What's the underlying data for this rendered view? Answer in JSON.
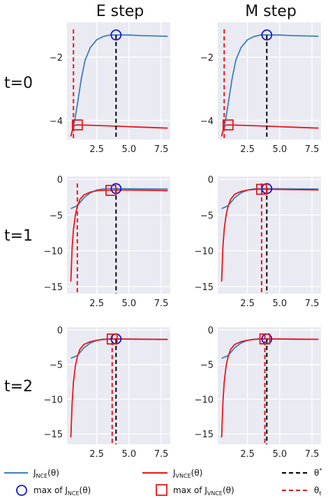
{
  "column_titles": [
    "E step",
    "M step"
  ],
  "row_labels": [
    "t=0",
    "t=1",
    "t=2"
  ],
  "legend": {
    "nce": "J_NCE(θ)",
    "vnce": "J_VNCE(θ)",
    "max_nce": "max of J_NCE(θ)",
    "max_vnce": "max of J_VNCE(θ)",
    "theta_star": "θ*",
    "theta_t": "θ_t"
  },
  "colors": {
    "nce": "#3a7fbf",
    "vnce": "#e8171b",
    "theta_star": "#000000",
    "theta_t": "#e8171b",
    "marker_nce": "#1515cf",
    "marker_vnce": "#e8171b",
    "panel_bg": "#eaeaf2",
    "grid": "#ffffff"
  },
  "chart_data": [
    {
      "type": "line",
      "row": 0,
      "col": 0,
      "title": "E step",
      "row_label": "t=0",
      "xlim": [
        0.2,
        8.2
      ],
      "ylim": [
        -4.6,
        -0.9
      ],
      "xticks": [
        2.5,
        5.0,
        7.5
      ],
      "yticks": [
        -2,
        -4
      ],
      "theta_star": 4.0,
      "theta_t": 0.7,
      "nce": {
        "x": [
          0.5,
          0.8,
          1.0,
          1.3,
          1.6,
          2.0,
          2.5,
          3.0,
          3.5,
          4.0,
          5.0,
          6.0,
          7.0,
          8.0
        ],
        "y": [
          -4.5,
          -4.0,
          -3.5,
          -2.7,
          -2.1,
          -1.7,
          -1.45,
          -1.35,
          -1.3,
          -1.3,
          -1.3,
          -1.32,
          -1.33,
          -1.34
        ]
      },
      "vnce": {
        "x": [
          0.5,
          0.6,
          0.7,
          0.8,
          1.0,
          2.0,
          4.0,
          6.0,
          8.0
        ],
        "y": [
          -4.5,
          -4.35,
          -4.2,
          -4.15,
          -4.14,
          -4.15,
          -4.18,
          -4.21,
          -4.24
        ]
      },
      "max_nce": [
        4.0,
        -1.3
      ],
      "max_vnce": [
        1.0,
        -4.14
      ]
    },
    {
      "type": "line",
      "row": 0,
      "col": 1,
      "title": "M step",
      "row_label": "t=0",
      "xlim": [
        0.2,
        8.2
      ],
      "ylim": [
        -4.6,
        -0.9
      ],
      "xticks": [
        2.5,
        5.0,
        7.5
      ],
      "yticks": [
        -2,
        -4
      ],
      "theta_star": 4.0,
      "theta_t": 0.7,
      "nce": {
        "x": [
          0.5,
          0.8,
          1.0,
          1.3,
          1.6,
          2.0,
          2.5,
          3.0,
          3.5,
          4.0,
          5.0,
          6.0,
          7.0,
          8.0
        ],
        "y": [
          -4.5,
          -4.0,
          -3.5,
          -2.7,
          -2.1,
          -1.7,
          -1.45,
          -1.35,
          -1.3,
          -1.3,
          -1.3,
          -1.32,
          -1.33,
          -1.34
        ]
      },
      "vnce": {
        "x": [
          0.5,
          0.6,
          0.7,
          0.8,
          1.0,
          2.0,
          4.0,
          6.0,
          8.0
        ],
        "y": [
          -4.5,
          -4.35,
          -4.2,
          -4.15,
          -4.14,
          -4.15,
          -4.18,
          -4.21,
          -4.24
        ]
      },
      "max_nce": [
        4.0,
        -1.3
      ],
      "max_vnce": [
        1.0,
        -4.14
      ]
    },
    {
      "type": "line",
      "row": 1,
      "col": 0,
      "title": "",
      "row_label": "t=1",
      "xlim": [
        0.2,
        8.2
      ],
      "ylim": [
        -16.0,
        0.4
      ],
      "xticks": [
        2.5,
        5.0,
        7.5
      ],
      "yticks": [
        0,
        -5,
        -10,
        -15
      ],
      "theta_star": 4.0,
      "theta_t": 1.0,
      "nce": {
        "x": [
          0.5,
          1.0,
          1.5,
          2.0,
          2.5,
          3.0,
          3.5,
          4.0,
          5.0,
          6.0,
          8.0
        ],
        "y": [
          -4.1,
          -3.7,
          -2.6,
          -1.9,
          -1.5,
          -1.35,
          -1.3,
          -1.3,
          -1.32,
          -1.34,
          -1.36
        ]
      },
      "vnce": {
        "x": [
          0.5,
          0.6,
          0.7,
          0.85,
          1.0,
          1.2,
          1.5,
          2.0,
          2.5,
          3.0,
          4.0,
          5.0,
          6.0,
          7.0,
          8.0
        ],
        "y": [
          -14.3,
          -9.5,
          -7.0,
          -5.0,
          -3.8,
          -2.8,
          -2.2,
          -1.8,
          -1.6,
          -1.55,
          -1.5,
          -1.5,
          -1.52,
          -1.55,
          -1.58
        ]
      },
      "max_nce": [
        4.0,
        -1.3
      ],
      "max_vnce": [
        3.6,
        -1.55
      ]
    },
    {
      "type": "line",
      "row": 1,
      "col": 1,
      "title": "",
      "row_label": "t=1",
      "xlim": [
        0.2,
        8.2
      ],
      "ylim": [
        -16.0,
        0.4
      ],
      "xticks": [
        2.5,
        5.0,
        7.5
      ],
      "yticks": [
        0,
        -5,
        -10,
        -15
      ],
      "theta_star": 4.0,
      "theta_t": 3.6,
      "nce": {
        "x": [
          0.5,
          1.0,
          1.5,
          2.0,
          2.5,
          3.0,
          3.5,
          4.0,
          5.0,
          6.0,
          8.0
        ],
        "y": [
          -4.1,
          -3.7,
          -2.6,
          -1.9,
          -1.5,
          -1.35,
          -1.3,
          -1.3,
          -1.32,
          -1.34,
          -1.36
        ]
      },
      "vnce": {
        "x": [
          0.5,
          0.6,
          0.7,
          0.85,
          1.0,
          1.2,
          1.5,
          2.0,
          2.5,
          3.0,
          3.5,
          4.0,
          5.0,
          6.0,
          8.0
        ],
        "y": [
          -14.3,
          -9.5,
          -7.0,
          -5.0,
          -3.8,
          -2.8,
          -2.1,
          -1.7,
          -1.5,
          -1.42,
          -1.4,
          -1.4,
          -1.42,
          -1.44,
          -1.48
        ]
      },
      "max_nce": [
        4.0,
        -1.3
      ],
      "max_vnce": [
        3.6,
        -1.4
      ]
    },
    {
      "type": "line",
      "row": 2,
      "col": 0,
      "title": "",
      "row_label": "t=2",
      "xlim": [
        0.2,
        8.2
      ],
      "ylim": [
        -16.5,
        0.4
      ],
      "xticks": [
        2.5,
        5.0,
        7.5
      ],
      "yticks": [
        0,
        -5,
        -10,
        -15
      ],
      "theta_star": 4.0,
      "theta_t": 3.7,
      "nce": {
        "x": [
          0.5,
          1.0,
          1.5,
          2.0,
          2.5,
          3.0,
          3.5,
          4.0,
          5.0,
          6.0,
          8.0
        ],
        "y": [
          -4.1,
          -3.7,
          -2.6,
          -1.9,
          -1.5,
          -1.35,
          -1.3,
          -1.3,
          -1.32,
          -1.34,
          -1.36
        ]
      },
      "vnce": {
        "x": [
          0.5,
          0.6,
          0.7,
          0.85,
          1.0,
          1.2,
          1.5,
          2.0,
          2.5,
          3.0,
          3.5,
          4.0,
          5.0,
          6.0,
          8.0
        ],
        "y": [
          -15.5,
          -10.5,
          -7.5,
          -5.2,
          -3.9,
          -2.8,
          -2.1,
          -1.7,
          -1.5,
          -1.38,
          -1.33,
          -1.32,
          -1.33,
          -1.35,
          -1.38
        ]
      },
      "max_nce": [
        4.0,
        -1.3
      ],
      "max_vnce": [
        3.7,
        -1.32
      ]
    },
    {
      "type": "line",
      "row": 2,
      "col": 1,
      "title": "",
      "row_label": "t=2",
      "xlim": [
        0.2,
        8.2
      ],
      "ylim": [
        -16.5,
        0.4
      ],
      "xticks": [
        2.5,
        5.0,
        7.5
      ],
      "yticks": [
        0,
        -5,
        -10,
        -15
      ],
      "theta_star": 4.0,
      "theta_t": 3.85,
      "nce": {
        "x": [
          0.5,
          1.0,
          1.5,
          2.0,
          2.5,
          3.0,
          3.5,
          4.0,
          5.0,
          6.0,
          8.0
        ],
        "y": [
          -4.1,
          -3.7,
          -2.6,
          -1.9,
          -1.5,
          -1.35,
          -1.3,
          -1.3,
          -1.32,
          -1.34,
          -1.36
        ]
      },
      "vnce": {
        "x": [
          0.5,
          0.6,
          0.7,
          0.85,
          1.0,
          1.2,
          1.5,
          2.0,
          2.5,
          3.0,
          3.5,
          4.0,
          5.0,
          6.0,
          8.0
        ],
        "y": [
          -15.5,
          -10.5,
          -7.5,
          -5.2,
          -3.9,
          -2.8,
          -2.1,
          -1.7,
          -1.5,
          -1.37,
          -1.31,
          -1.3,
          -1.31,
          -1.33,
          -1.36
        ]
      },
      "max_nce": [
        4.0,
        -1.3
      ],
      "max_vnce": [
        3.85,
        -1.3
      ]
    }
  ]
}
